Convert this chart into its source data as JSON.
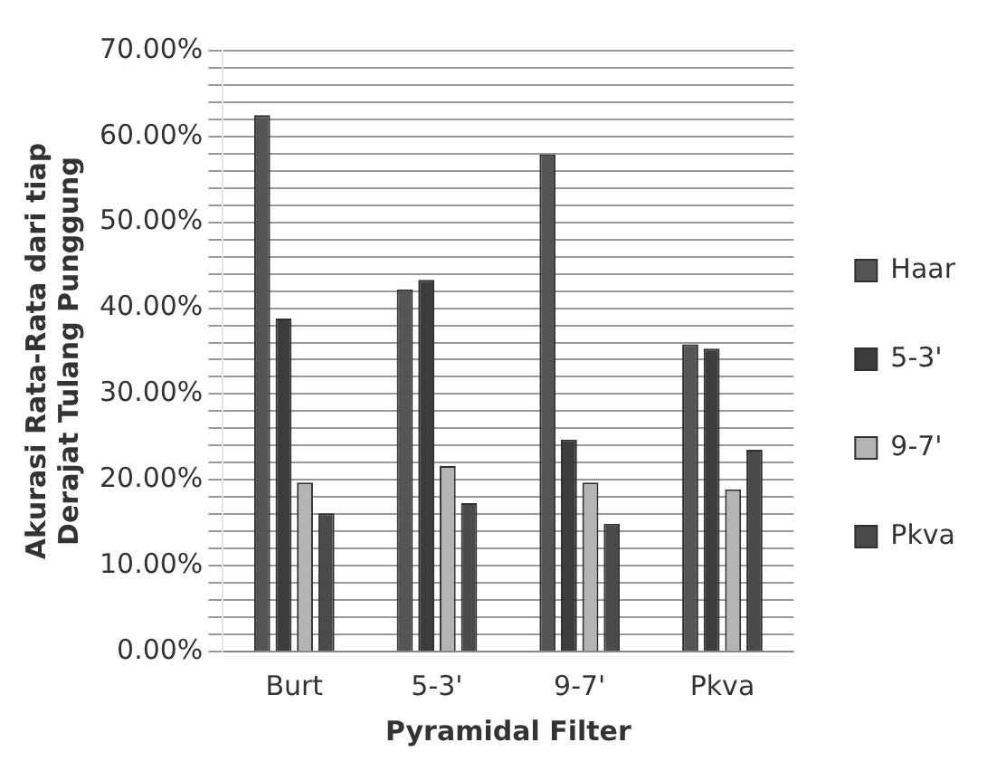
{
  "chart_data": {
    "type": "bar",
    "xlabel": "Pyramidal Filter",
    "ylabel": "Akurasi Rata-Rata dari tiap\nDerajat Tulang Punggung",
    "categories": [
      "Burt",
      "5-3'",
      "9-7'",
      "Pkva"
    ],
    "series": [
      {
        "name": "Haar",
        "color": "#555555",
        "values": [
          62.5,
          42.2,
          57.9,
          35.8
        ]
      },
      {
        "name": "5-3'",
        "color": "#3c3c3c",
        "values": [
          38.8,
          43.3,
          24.7,
          35.3
        ]
      },
      {
        "name": "9-7'",
        "color": "#b4b4b4",
        "values": [
          19.7,
          21.6,
          19.7,
          18.9
        ]
      },
      {
        "name": "Pkva",
        "color": "#4a4a4a",
        "values": [
          16.1,
          17.3,
          14.9,
          23.5
        ]
      }
    ],
    "ylim": [
      0,
      70
    ],
    "yticks": [
      {
        "value": 0,
        "label": "0.00%"
      },
      {
        "value": 2,
        "label": null
      },
      {
        "value": 4,
        "label": null
      },
      {
        "value": 6,
        "label": null
      },
      {
        "value": 8,
        "label": null
      },
      {
        "value": 10,
        "label": "10.00%"
      },
      {
        "value": 12,
        "label": null
      },
      {
        "value": 14,
        "label": null
      },
      {
        "value": 16,
        "label": null
      },
      {
        "value": 18,
        "label": null
      },
      {
        "value": 20,
        "label": "20.00%"
      },
      {
        "value": 22,
        "label": null
      },
      {
        "value": 24,
        "label": null
      },
      {
        "value": 26,
        "label": null
      },
      {
        "value": 28,
        "label": null
      },
      {
        "value": 30,
        "label": "30.00%"
      },
      {
        "value": 32,
        "label": null
      },
      {
        "value": 34,
        "label": null
      },
      {
        "value": 36,
        "label": null
      },
      {
        "value": 38,
        "label": null
      },
      {
        "value": 40,
        "label": "40.00%"
      },
      {
        "value": 42,
        "label": null
      },
      {
        "value": 44,
        "label": null
      },
      {
        "value": 46,
        "label": null
      },
      {
        "value": 48,
        "label": null
      },
      {
        "value": 50,
        "label": "50.00%"
      },
      {
        "value": 52,
        "label": null
      },
      {
        "value": 54,
        "label": null
      },
      {
        "value": 56,
        "label": null
      },
      {
        "value": 58,
        "label": null
      },
      {
        "value": 60,
        "label": "60.00%"
      },
      {
        "value": 62,
        "label": null
      },
      {
        "value": 64,
        "label": null
      },
      {
        "value": 66,
        "label": null
      },
      {
        "value": 68,
        "label": null
      },
      {
        "value": 70,
        "label": "70.00%"
      }
    ],
    "grid": "y",
    "legend": "right"
  }
}
